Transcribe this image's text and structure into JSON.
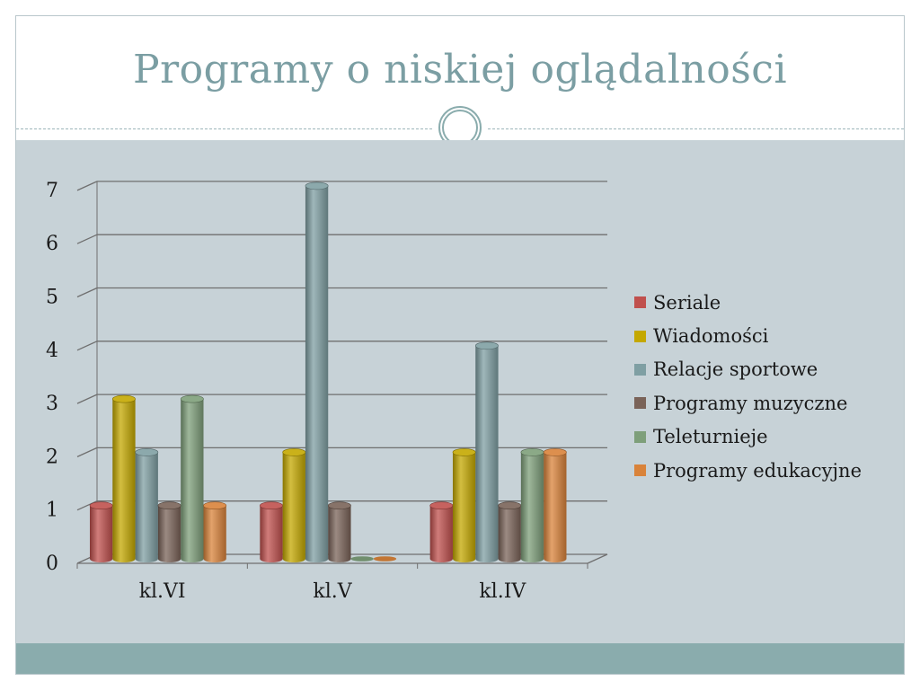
{
  "slide": {
    "title": "Programy o niskiej oglądalności"
  },
  "chart_data": {
    "type": "bar",
    "categories": [
      "kl.VI",
      "kl.V",
      "kl.IV"
    ],
    "series": [
      {
        "name": "Seriale",
        "values": [
          1,
          1,
          1
        ],
        "color": "#c0504d"
      },
      {
        "name": "Wiadomości",
        "values": [
          3,
          2,
          2
        ],
        "color": "#c4a800"
      },
      {
        "name": "Relacje sportowe",
        "values": [
          2,
          7,
          4
        ],
        "color": "#7f9fa3"
      },
      {
        "name": "Programy muzyczne",
        "values": [
          1,
          1,
          1
        ],
        "color": "#7a6358"
      },
      {
        "name": "Teleturnieje",
        "values": [
          3,
          0,
          2
        ],
        "color": "#7e9f7a"
      },
      {
        "name": "Programy edukacyjne",
        "values": [
          1,
          0,
          2
        ],
        "color": "#d9833a"
      }
    ],
    "ylim": [
      0,
      7
    ],
    "yticks": [
      "0",
      "1",
      "2",
      "3",
      "4",
      "5",
      "6",
      "7"
    ],
    "grid": true,
    "legend": "right",
    "title": "",
    "xlabel": "",
    "ylabel": ""
  }
}
